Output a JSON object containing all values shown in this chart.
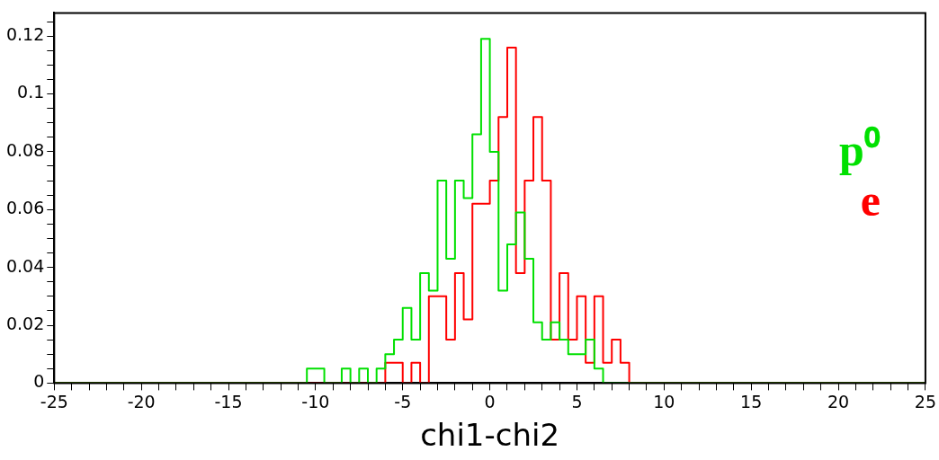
{
  "chart_data": {
    "type": "histogram",
    "xlabel": "chi1-chi2",
    "bins": [
      -25,
      -24.5,
      -24,
      -23.5,
      -23,
      -22.5,
      -22,
      -21.5,
      -21,
      -20.5,
      -20,
      -19.5,
      -19,
      -18.5,
      -18,
      -17.5,
      -17,
      -16.5,
      -16,
      -15.5,
      -15,
      -14.5,
      -14,
      -13.5,
      -13,
      -12.5,
      -12,
      -11.5,
      -11,
      -10.5,
      -10,
      -9.5,
      -9,
      -8.5,
      -8,
      -7.5,
      -7,
      -6.5,
      -6,
      -5.5,
      -5,
      -4.5,
      -4,
      -3.5,
      -3,
      -2.5,
      -2,
      -1.5,
      -1,
      -0.5,
      0,
      0.5,
      1,
      1.5,
      2,
      2.5,
      3,
      3.5,
      4,
      4.5,
      5,
      5.5,
      6,
      6.5,
      7,
      7.5,
      8,
      8.5,
      9,
      9.5,
      10,
      10.5,
      11,
      11.5,
      12,
      12.5,
      13,
      13.5,
      14,
      14.5,
      15,
      15.5,
      16,
      16.5,
      17,
      17.5,
      18,
      18.5,
      19,
      19.5,
      20,
      20.5,
      21,
      21.5,
      22,
      22.5,
      23,
      23.5,
      24,
      24.5,
      25
    ],
    "series": [
      {
        "name": "p⁰",
        "color": "#00e000",
        "values": [
          0,
          0,
          0,
          0,
          0,
          0,
          0,
          0,
          0,
          0,
          0,
          0,
          0,
          0,
          0,
          0,
          0,
          0,
          0,
          0,
          0,
          0,
          0,
          0,
          0,
          0,
          0,
          0,
          0,
          0.005,
          0.005,
          0,
          0,
          0.005,
          0,
          0.005,
          0,
          0.005,
          0.01,
          0.015,
          0.026,
          0.015,
          0.038,
          0.032,
          0.07,
          0.043,
          0.07,
          0.064,
          0.086,
          0.119,
          0.08,
          0.032,
          0.048,
          0.059,
          0.043,
          0.021,
          0.015,
          0.021,
          0.015,
          0.01,
          0.01,
          0.015,
          0.005,
          0,
          0,
          0,
          0,
          0,
          0,
          0,
          0,
          0,
          0,
          0,
          0,
          0,
          0,
          0,
          0,
          0,
          0,
          0,
          0,
          0,
          0,
          0,
          0,
          0,
          0,
          0,
          0,
          0,
          0,
          0,
          0,
          0,
          0,
          0,
          0,
          0
        ]
      },
      {
        "name": "e",
        "color": "#ff0000",
        "values": [
          0,
          0,
          0,
          0,
          0,
          0,
          0,
          0,
          0,
          0,
          0,
          0,
          0,
          0,
          0,
          0,
          0,
          0,
          0,
          0,
          0,
          0,
          0,
          0,
          0,
          0,
          0,
          0,
          0,
          0,
          0,
          0,
          0,
          0,
          0,
          0,
          0,
          0,
          0.007,
          0.007,
          0,
          0.007,
          0,
          0.03,
          0.03,
          0.015,
          0.038,
          0.022,
          0.062,
          0.062,
          0.07,
          0.092,
          0.116,
          0.038,
          0.07,
          0.092,
          0.07,
          0.015,
          0.038,
          0.015,
          0.03,
          0.007,
          0.03,
          0.007,
          0.015,
          0.007,
          0,
          0,
          0,
          0,
          0,
          0,
          0,
          0,
          0,
          0,
          0,
          0,
          0,
          0,
          0,
          0,
          0,
          0,
          0,
          0,
          0,
          0,
          0,
          0,
          0,
          0,
          0,
          0,
          0,
          0,
          0,
          0,
          0,
          0
        ]
      }
    ],
    "xlim": [
      -25,
      25
    ],
    "xticks": [
      -25,
      {
        "value": -24,
        "label": null
      },
      {
        "value": -23,
        "label": null
      },
      {
        "value": -22,
        "label": null
      },
      {
        "value": -21,
        "label": null
      },
      -20,
      {
        "value": -19,
        "label": null
      },
      {
        "value": -18,
        "label": null
      },
      {
        "value": -17,
        "label": null
      },
      {
        "value": -16,
        "label": null
      },
      -15,
      {
        "value": -14,
        "label": null
      },
      {
        "value": -13,
        "label": null
      },
      {
        "value": -12,
        "label": null
      },
      {
        "value": -11,
        "label": null
      },
      -10,
      {
        "value": -9,
        "label": null
      },
      {
        "value": -8,
        "label": null
      },
      {
        "value": -7,
        "label": null
      },
      {
        "value": -6,
        "label": null
      },
      -5,
      {
        "value": -4,
        "label": null
      },
      {
        "value": -3,
        "label": null
      },
      {
        "value": -2,
        "label": null
      },
      {
        "value": -1,
        "label": null
      },
      0,
      {
        "value": 1,
        "label": null
      },
      {
        "value": 2,
        "label": null
      },
      {
        "value": 3,
        "label": null
      },
      {
        "value": 4,
        "label": null
      },
      5,
      {
        "value": 6,
        "label": null
      },
      {
        "value": 7,
        "label": null
      },
      {
        "value": 8,
        "label": null
      },
      {
        "value": 9,
        "label": null
      },
      10,
      {
        "value": 11,
        "label": null
      },
      {
        "value": 12,
        "label": null
      },
      {
        "value": 13,
        "label": null
      },
      {
        "value": 14,
        "label": null
      },
      15,
      {
        "value": 16,
        "label": null
      },
      {
        "value": 17,
        "label": null
      },
      {
        "value": 18,
        "label": null
      },
      {
        "value": 19,
        "label": null
      },
      20,
      {
        "value": 21,
        "label": null
      },
      {
        "value": 22,
        "label": null
      },
      {
        "value": 23,
        "label": null
      },
      {
        "value": 24,
        "label": null
      },
      25
    ],
    "ylim": [
      0,
      0.128
    ],
    "yticks": [
      0,
      {
        "value": 0.005,
        "label": null
      },
      {
        "value": 0.01,
        "label": null
      },
      {
        "value": 0.015,
        "label": null
      },
      0.02,
      {
        "value": 0.025,
        "label": null
      },
      {
        "value": 0.03,
        "label": null
      },
      {
        "value": 0.035,
        "label": null
      },
      0.04,
      {
        "value": 0.045,
        "label": null
      },
      {
        "value": 0.05,
        "label": null
      },
      {
        "value": 0.055,
        "label": null
      },
      0.06,
      {
        "value": 0.065,
        "label": null
      },
      {
        "value": 0.07,
        "label": null
      },
      {
        "value": 0.075,
        "label": null
      },
      0.08,
      {
        "value": 0.085,
        "label": null
      },
      {
        "value": 0.09,
        "label": null
      },
      {
        "value": 0.095,
        "label": null
      },
      0.1,
      {
        "value": 0.105,
        "label": null
      },
      {
        "value": 0.11,
        "label": null
      },
      {
        "value": 0.115,
        "label": null
      },
      0.12,
      {
        "value": 0.125,
        "label": null
      }
    ],
    "grid": false,
    "legend": "top right"
  }
}
